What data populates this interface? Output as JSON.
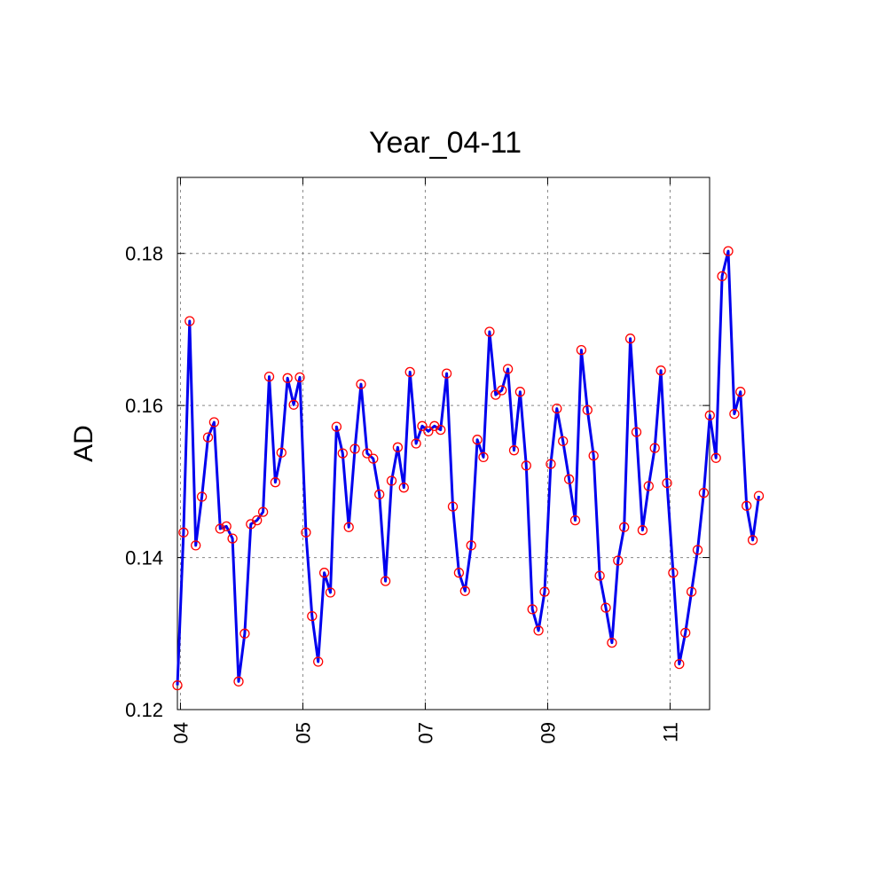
{
  "chart_data": {
    "type": "line",
    "title": "Year_04-11",
    "xlabel": "",
    "ylabel": "AD",
    "ylim": [
      0.12,
      0.19
    ],
    "yticks": [
      0.12,
      0.14,
      0.16,
      0.18
    ],
    "ytick_labels": [
      "0.12",
      "0.14",
      "0.16",
      "0.18"
    ],
    "xlim": [
      0,
      87
    ],
    "xticks": [
      0.5,
      20.5,
      40.5,
      60.5,
      80.5
    ],
    "xtick_labels": [
      "04",
      "05",
      "07",
      "09",
      "11"
    ],
    "grid": true,
    "line_color": "#0000ee",
    "marker_color": "#ff0000",
    "values": [
      0.1232,
      0.1433,
      0.1711,
      0.1416,
      0.148,
      0.1558,
      0.1578,
      0.1438,
      0.1441,
      0.1425,
      0.1237,
      0.13,
      0.1444,
      0.1449,
      0.146,
      0.1638,
      0.1499,
      0.1538,
      0.1636,
      0.1601,
      0.1637,
      0.1433,
      0.1323,
      0.1263,
      0.138,
      0.1354,
      0.1572,
      0.1537,
      0.144,
      0.1543,
      0.1628,
      0.1537,
      0.153,
      0.1483,
      0.1369,
      0.1501,
      0.1545,
      0.1492,
      0.1644,
      0.155,
      0.1573,
      0.1566,
      0.1573,
      0.1568,
      0.1642,
      0.1467,
      0.138,
      0.1356,
      0.1416,
      0.1555,
      0.1532,
      0.1697,
      0.1614,
      0.162,
      0.1648,
      0.1541,
      0.1618,
      0.1521,
      0.1332,
      0.1304,
      0.1355,
      0.1523,
      0.1596,
      0.1553,
      0.1503,
      0.1449,
      0.1673,
      0.1594,
      0.1534,
      0.1376,
      0.1334,
      0.1288,
      0.1396,
      0.144,
      0.1688,
      0.1565,
      0.1436,
      0.1494,
      0.1544,
      0.1646,
      0.1498,
      0.138,
      0.126,
      0.1301,
      0.1355,
      0.141,
      0.1485,
      0.1587,
      0.1531,
      0.177,
      0.1803,
      0.1589,
      0.1618,
      0.1468,
      0.1423,
      0.1481
    ]
  }
}
